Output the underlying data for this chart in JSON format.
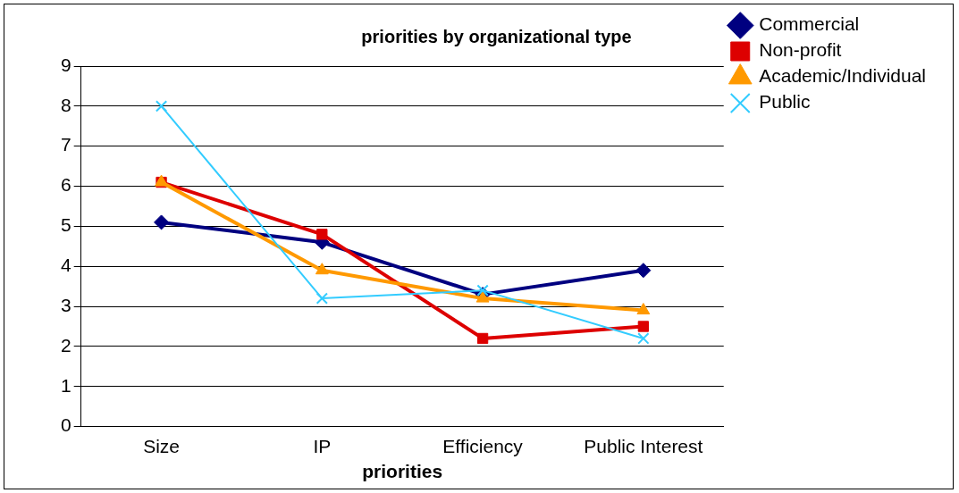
{
  "chart_data": {
    "type": "line",
    "title": "priorities by organizational type",
    "xlabel": "priorities",
    "categories": [
      "Size",
      "IP",
      "Efficiency",
      "Public Interest"
    ],
    "series": [
      {
        "name": "Commercial",
        "color": "#000080",
        "marker": "diamond",
        "values": [
          5.1,
          4.6,
          3.3,
          3.9
        ]
      },
      {
        "name": "Non-profit",
        "color": "#dd0000",
        "marker": "square",
        "values": [
          6.1,
          4.8,
          2.2,
          2.5
        ]
      },
      {
        "name": "Academic/Individual",
        "color": "#ff9900",
        "marker": "triangle",
        "values": [
          6.1,
          3.9,
          3.2,
          2.9
        ]
      },
      {
        "name": "Public",
        "color": "#33ccff",
        "marker": "cross",
        "values": [
          8.0,
          3.2,
          3.4,
          2.2
        ]
      }
    ],
    "ylim": [
      0,
      9
    ],
    "yticks": [
      0,
      1,
      2,
      3,
      4,
      5,
      6,
      7,
      8,
      9
    ],
    "grid": "y",
    "legend": "top right",
    "line_style": "solid"
  }
}
